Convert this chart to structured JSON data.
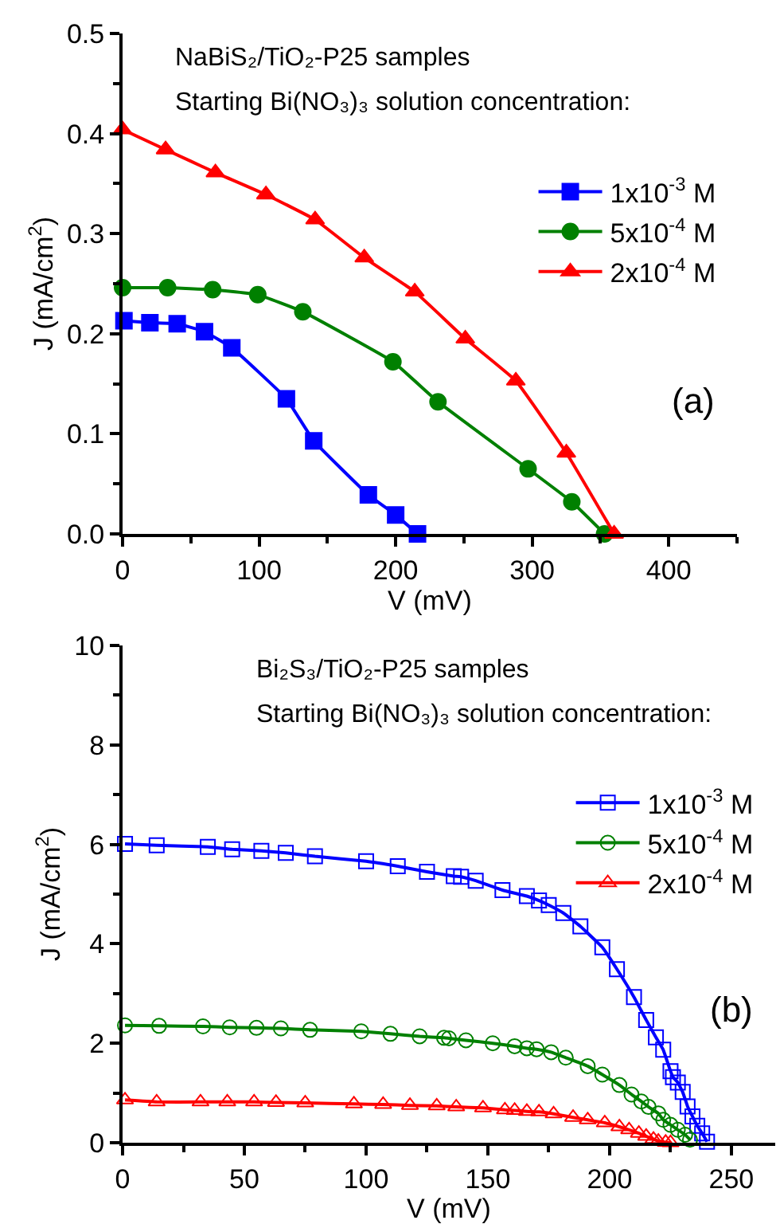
{
  "chart_data": [
    {
      "type": "line",
      "title": "NaBiS₂/TiO₂-P25 samples",
      "subtitle": "Starting Bi(NO₃)₃ solution concentration:",
      "xlabel": "V (mV)",
      "ylabel": "J (mA/cm$^{2}$)",
      "annotations": [
        "(a)"
      ],
      "xlim": [
        0,
        450
      ],
      "xticks": [
        0,
        100,
        200,
        300,
        400
      ],
      "ylim": [
        0,
        0.5
      ],
      "yticks": [
        {
          "value": 0,
          "label": "0.0"
        },
        0.1,
        0.2,
        0.3,
        0.4,
        0.5
      ],
      "legend": "top right",
      "line_style": "solid",
      "series": [
        {
          "name": "1x10$^{-3}$ M",
          "color": "#0000ff",
          "marker": "square",
          "x": [
            1,
            20,
            40,
            60,
            80,
            120,
            140,
            180,
            200,
            216
          ],
          "values": [
            0.213,
            0.211,
            0.21,
            0.202,
            0.186,
            0.135,
            0.093,
            0.039,
            0.019,
            0
          ]
        },
        {
          "name": "5x10$^{-4}$ M",
          "color": "#008000",
          "marker": "circle",
          "x": [
            0,
            33,
            66,
            99,
            132,
            198,
            231,
            297,
            329,
            353
          ],
          "values": [
            0.246,
            0.246,
            0.244,
            0.239,
            0.222,
            0.172,
            0.132,
            0.065,
            0.032,
            0
          ]
        },
        {
          "name": "2x10$^{-4}$ M",
          "color": "#ff0000",
          "marker": "triangle",
          "x": [
            0,
            31.5,
            68,
            105,
            141,
            177,
            214,
            251,
            288,
            325,
            360
          ],
          "values": [
            0.404,
            0.384,
            0.361,
            0.339,
            0.314,
            0.276,
            0.242,
            0.195,
            0.153,
            0.081,
            0
          ]
        }
      ]
    },
    {
      "type": "line",
      "title": "Bi₂S₃/TiO₂-P25 samples",
      "subtitle": "Starting Bi(NO₃)₃ solution concentration:",
      "xlabel": "V (mV)",
      "ylabel": "J (mA/cm$^{2}$)",
      "annotations": [
        "(b)"
      ],
      "xlim": [
        0,
        268
      ],
      "xticks": [
        0,
        50,
        100,
        150,
        200,
        250
      ],
      "ylim": [
        0,
        10
      ],
      "yticks": [
        0,
        2,
        4,
        6,
        8,
        10
      ],
      "legend": "top right",
      "line_style": "solid",
      "series": [
        {
          "name": "1x10$^{-3}$ M",
          "color": "#0000ff",
          "marker": "square",
          "x": [
            1,
            14,
            35,
            45,
            57,
            67,
            79,
            100,
            113,
            125,
            136,
            139,
            145,
            156,
            166,
            171,
            175,
            181,
            188,
            197,
            203,
            210,
            215,
            219,
            222,
            225,
            226,
            228,
            230,
            232,
            234,
            236,
            238,
            240
          ],
          "values": [
            6.01,
            5.98,
            5.95,
            5.9,
            5.87,
            5.83,
            5.76,
            5.66,
            5.56,
            5.45,
            5.36,
            5.35,
            5.27,
            5.08,
            4.96,
            4.87,
            4.78,
            4.62,
            4.35,
            3.93,
            3.49,
            2.93,
            2.47,
            2.12,
            1.87,
            1.44,
            1.32,
            1.21,
            1.02,
            0.73,
            0.53,
            0.34,
            0.19,
            0.02
          ]
        },
        {
          "name": "5x10$^{-4}$ M",
          "color": "#008000",
          "marker": "circle",
          "x": [
            1,
            15,
            33,
            44,
            55,
            65,
            77,
            98,
            110,
            122,
            132,
            134,
            141,
            152,
            161,
            166,
            170,
            176,
            182,
            191,
            197,
            204,
            209,
            213,
            216,
            220,
            222,
            225,
            228,
            231,
            233
          ],
          "values": [
            2.36,
            2.35,
            2.34,
            2.32,
            2.31,
            2.3,
            2.27,
            2.24,
            2.19,
            2.14,
            2.11,
            2.1,
            2.06,
            2.0,
            1.94,
            1.9,
            1.88,
            1.82,
            1.71,
            1.54,
            1.37,
            1.16,
            0.97,
            0.83,
            0.72,
            0.59,
            0.46,
            0.36,
            0.26,
            0.16,
            0.06
          ]
        },
        {
          "name": "2x10$^{-4}$ M",
          "color": "#ff0000",
          "marker": "triangle",
          "x": [
            1,
            14,
            32,
            43,
            54,
            63,
            75,
            95,
            107,
            118,
            129,
            137,
            148,
            157,
            161,
            166,
            171,
            177,
            185,
            191,
            198,
            204,
            208,
            212,
            215,
            218,
            220,
            223,
            225
          ],
          "values": [
            0.86,
            0.82,
            0.82,
            0.82,
            0.82,
            0.81,
            0.8,
            0.78,
            0.77,
            0.75,
            0.74,
            0.72,
            0.7,
            0.66,
            0.65,
            0.63,
            0.62,
            0.58,
            0.51,
            0.46,
            0.4,
            0.32,
            0.26,
            0.19,
            0.13,
            0.07,
            0.03,
            0.01,
            0
          ]
        }
      ]
    }
  ]
}
